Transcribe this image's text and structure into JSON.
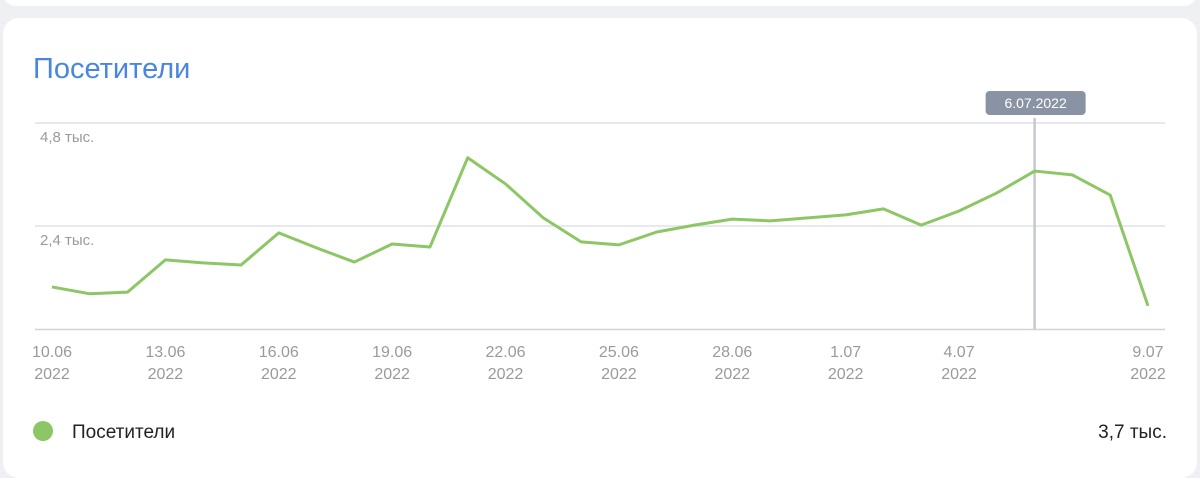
{
  "chart_data": {
    "type": "line",
    "title": "Посетители",
    "categories": [
      "10.06\n2022",
      null,
      null,
      "13.06\n2022",
      null,
      null,
      "16.06\n2022",
      null,
      null,
      "19.06\n2022",
      null,
      null,
      "22.06\n2022",
      null,
      null,
      "25.06\n2022",
      null,
      null,
      "28.06\n2022",
      null,
      null,
      "1.07\n2022",
      null,
      null,
      "4.07\n2022",
      null,
      null,
      null,
      null,
      "9.07\n2022"
    ],
    "series": [
      {
        "name": "Посетители",
        "color": "#8cc665",
        "values": [
          0.98,
          0.82,
          0.86,
          1.61,
          1.54,
          1.49,
          2.24,
          1.89,
          1.56,
          1.98,
          1.91,
          3.99,
          3.38,
          2.59,
          2.03,
          1.96,
          2.26,
          2.42,
          2.56,
          2.52,
          2.59,
          2.66,
          2.8,
          2.42,
          2.75,
          3.17,
          3.68,
          3.59,
          3.12,
          0.54
        ]
      }
    ],
    "ylim": [
      0,
      4.8
    ],
    "yticks": [
      {
        "value": 2.4,
        "label": "2,4 тыс."
      },
      {
        "value": 4.8,
        "label": "4,8 тыс."
      }
    ],
    "grid": true,
    "highlight": {
      "index": 26,
      "label": "6.07.2022"
    },
    "legend_value": {
      "value": 3.7,
      "label": "3,7 тыс."
    }
  }
}
